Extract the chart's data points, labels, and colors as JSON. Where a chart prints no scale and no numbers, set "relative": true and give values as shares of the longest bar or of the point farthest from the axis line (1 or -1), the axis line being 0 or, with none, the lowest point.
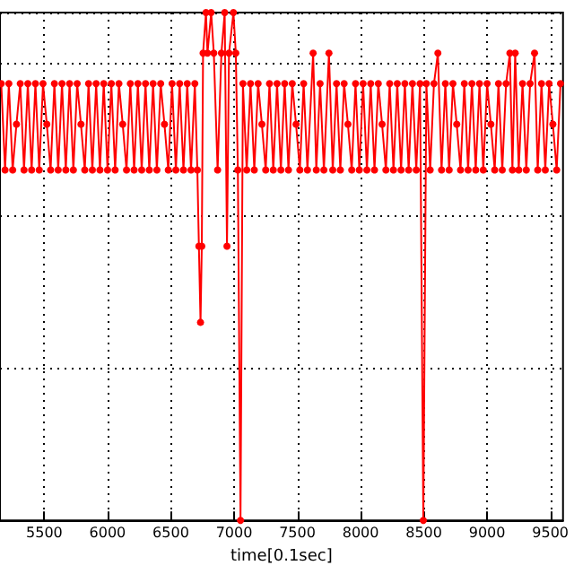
{
  "chart_data": {
    "type": "line",
    "xlabel": "time[0.1sec]",
    "relative": true,
    "grid": true,
    "marker": "circle",
    "line_style": "solid",
    "xlim": [
      5150,
      9600
    ],
    "xticks": [
      5500,
      6000,
      6500,
      7000,
      7500,
      8000,
      8500,
      9000,
      9500
    ],
    "series": [
      {
        "color": "#ff0000",
        "x": [
          5160,
          5190,
          5220,
          5250,
          5280,
          5310,
          5340,
          5370,
          5400,
          5430,
          5460,
          5490,
          5520,
          5550,
          5580,
          5610,
          5640,
          5670,
          5700,
          5730,
          5760,
          5790,
          5820,
          5850,
          5880,
          5910,
          5940,
          5970,
          6000,
          6030,
          6060,
          6090,
          6120,
          6150,
          6180,
          6210,
          6240,
          6270,
          6300,
          6330,
          6360,
          6390,
          6420,
          6450,
          6480,
          6510,
          6540,
          6570,
          6600,
          6630,
          6660,
          6690,
          6710,
          6722,
          6735,
          6745,
          6755,
          6778,
          6790,
          6819,
          6840,
          6870,
          6900,
          6926,
          6944,
          6960,
          6995,
          7014,
          7030,
          7051,
          7070,
          7100,
          7130,
          7160,
          7190,
          7220,
          7250,
          7280,
          7310,
          7340,
          7370,
          7400,
          7430,
          7460,
          7490,
          7520,
          7550,
          7580,
          7625,
          7650,
          7680,
          7710,
          7750,
          7780,
          7810,
          7840,
          7870,
          7900,
          7930,
          7960,
          7990,
          8020,
          8050,
          8080,
          8110,
          8140,
          8170,
          8200,
          8230,
          8260,
          8290,
          8320,
          8350,
          8380,
          8410,
          8440,
          8470,
          8496,
          8520,
          8550,
          8580,
          8611,
          8640,
          8670,
          8700,
          8730,
          8760,
          8790,
          8820,
          8850,
          8880,
          8910,
          8940,
          8970,
          9000,
          9030,
          9060,
          9090,
          9120,
          9150,
          9180,
          9200,
          9222,
          9250,
          9280,
          9310,
          9340,
          9375,
          9400,
          9430,
          9460,
          9490,
          9520,
          9550,
          9580
        ],
        "values": [
          0.86,
          0.69,
          0.86,
          0.69,
          0.78,
          0.86,
          0.69,
          0.86,
          0.69,
          0.86,
          0.69,
          0.86,
          0.78,
          0.69,
          0.86,
          0.69,
          0.86,
          0.69,
          0.86,
          0.69,
          0.86,
          0.78,
          0.69,
          0.86,
          0.69,
          0.86,
          0.69,
          0.86,
          0.69,
          0.86,
          0.69,
          0.86,
          0.78,
          0.69,
          0.86,
          0.69,
          0.86,
          0.69,
          0.86,
          0.69,
          0.86,
          0.69,
          0.86,
          0.78,
          0.69,
          0.86,
          0.69,
          0.86,
          0.69,
          0.86,
          0.69,
          0.86,
          0.69,
          0.54,
          0.39,
          0.54,
          0.92,
          1,
          0.92,
          1,
          0.92,
          0.69,
          0.92,
          1,
          0.54,
          0.92,
          1,
          0.92,
          0.69,
          0,
          0.86,
          0.69,
          0.86,
          0.69,
          0.86,
          0.78,
          0.69,
          0.86,
          0.69,
          0.86,
          0.69,
          0.86,
          0.69,
          0.86,
          0.78,
          0.69,
          0.86,
          0.69,
          0.92,
          0.69,
          0.86,
          0.69,
          0.92,
          0.69,
          0.86,
          0.69,
          0.86,
          0.78,
          0.69,
          0.86,
          0.69,
          0.86,
          0.69,
          0.86,
          0.69,
          0.86,
          0.78,
          0.69,
          0.86,
          0.69,
          0.86,
          0.69,
          0.86,
          0.69,
          0.86,
          0.69,
          0.86,
          0,
          0.86,
          0.69,
          0.86,
          0.92,
          0.69,
          0.86,
          0.69,
          0.86,
          0.78,
          0.69,
          0.86,
          0.69,
          0.86,
          0.69,
          0.86,
          0.69,
          0.86,
          0.78,
          0.69,
          0.86,
          0.69,
          0.86,
          0.92,
          0.69,
          0.92,
          0.69,
          0.86,
          0.69,
          0.86,
          0.92,
          0.69,
          0.86,
          0.69,
          0.86,
          0.78,
          0.69,
          0.86
        ]
      }
    ]
  }
}
